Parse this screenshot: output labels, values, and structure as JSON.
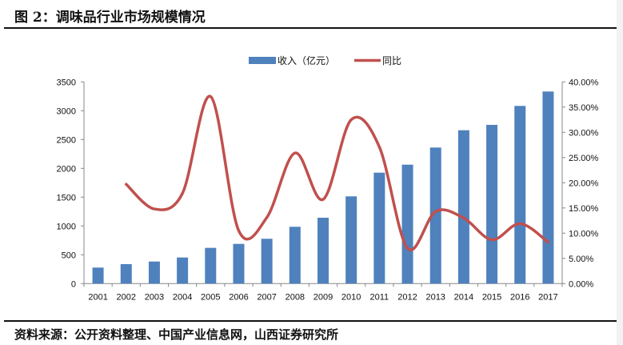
{
  "figure_title": "图 2：调味品行业市场规模情况",
  "source": "资料来源：公开资料整理、中国产业信息网，山西证券研究所",
  "chart_data": {
    "type": "bar+line",
    "categories": [
      "2001",
      "2002",
      "2003",
      "2004",
      "2005",
      "2006",
      "2007",
      "2008",
      "2009",
      "2010",
      "2011",
      "2012",
      "2013",
      "2014",
      "2015",
      "2016",
      "2017"
    ],
    "series": [
      {
        "name": "收入（亿元）",
        "type": "bar",
        "axis": "left",
        "color": "#4F81BD",
        "values": [
          278,
          338,
          383,
          453,
          620,
          689,
          778,
          986,
          1143,
          1514,
          1925,
          2064,
          2361,
          2661,
          2754,
          3083,
          3333
        ]
      },
      {
        "name": "同比",
        "type": "line",
        "axis": "right",
        "color": "#C0504D",
        "smooth": true,
        "values": [
          null,
          0.197,
          0.148,
          0.179,
          0.371,
          0.105,
          0.131,
          0.259,
          0.167,
          0.325,
          0.271,
          0.07,
          0.143,
          0.13,
          0.087,
          0.119,
          0.082
        ]
      }
    ],
    "y_left": {
      "range": [
        0,
        3500
      ],
      "ticks": [
        "0",
        "500",
        "1000",
        "1500",
        "2000",
        "2500",
        "3000",
        "3500"
      ]
    },
    "y_right": {
      "range": [
        0,
        0.4
      ],
      "ticks": [
        "0.00%",
        "5.00%",
        "10.00%",
        "15.00%",
        "20.00%",
        "25.00%",
        "30.00%",
        "35.00%",
        "40.00%"
      ]
    },
    "grid": false,
    "legend": "top-center"
  }
}
